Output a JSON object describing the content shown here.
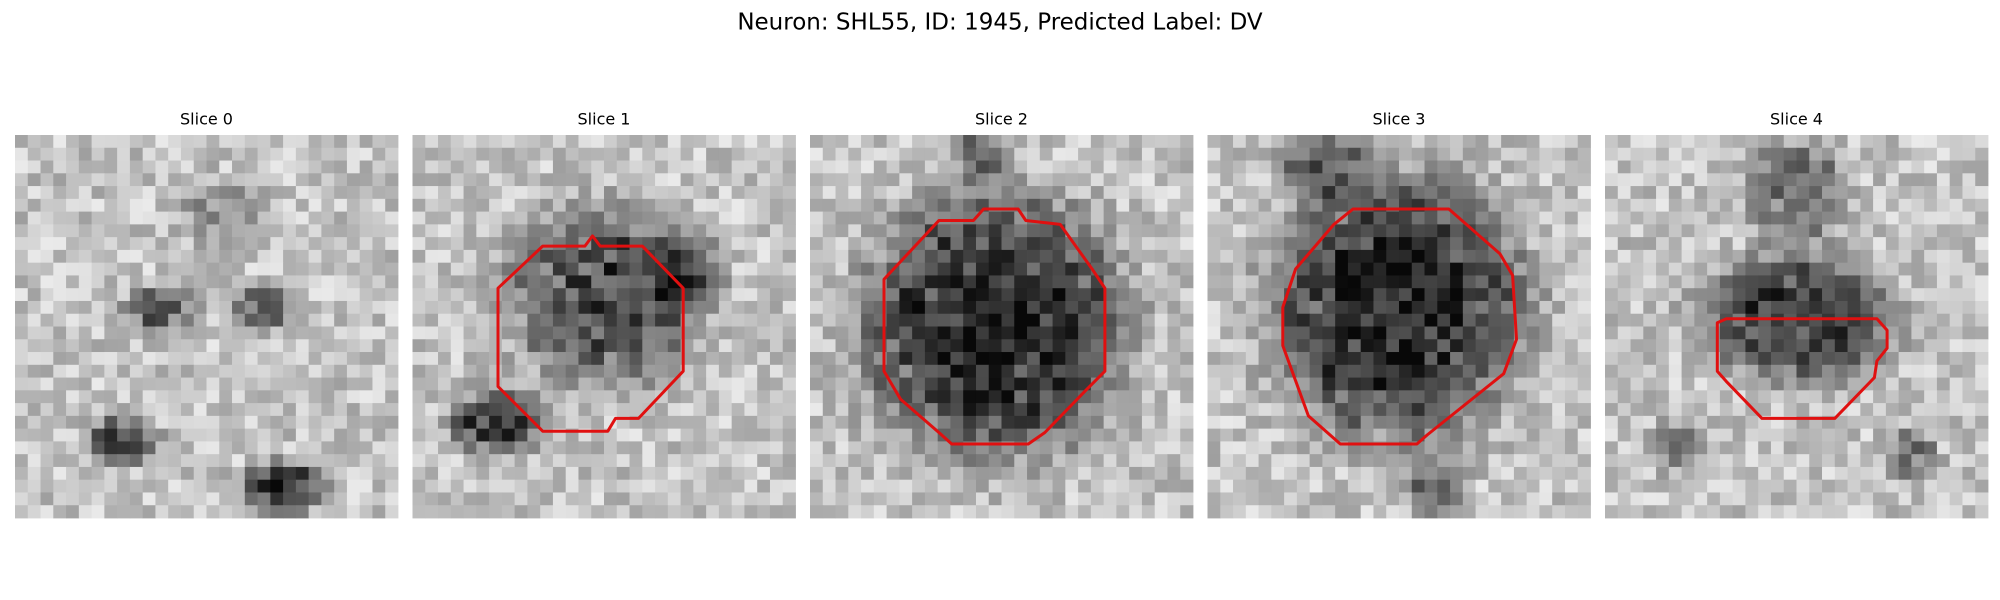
{
  "title": "Neuron: SHL55, ID: 1945, Predicted Label: DV",
  "panels": [
    {
      "title": "Slice 0"
    },
    {
      "title": "Slice 1"
    },
    {
      "title": "Slice 2"
    },
    {
      "title": "Slice 3"
    },
    {
      "title": "Slice 4"
    }
  ]
}
